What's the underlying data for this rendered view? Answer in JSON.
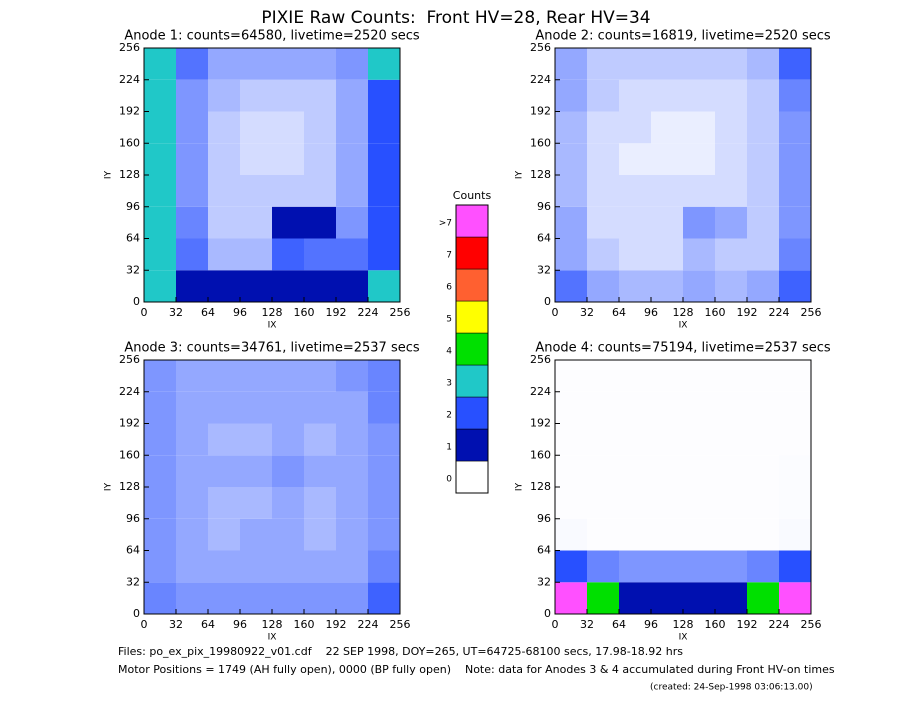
{
  "title": "PIXIE Raw Counts:  Front HV=28, Rear HV=34",
  "chart_data": [
    {
      "type": "heatmap",
      "title": "Anode 1: counts=64580, livetime=2520 secs",
      "xlabel": "IX",
      "ylabel": "IY",
      "xlim": [
        0,
        256
      ],
      "ylim": [
        0,
        256
      ],
      "xticks": [
        0,
        32,
        64,
        96,
        128,
        160,
        192,
        224,
        256
      ],
      "yticks": [
        0,
        32,
        64,
        96,
        128,
        160,
        192,
        224,
        256
      ],
      "z": [
        [
          3,
          1.2,
          1,
          1,
          1,
          1,
          1.2,
          3
        ],
        [
          3,
          0.8,
          0.4,
          0.4,
          0.9,
          0.8,
          0.8,
          2.5
        ],
        [
          3,
          0.7,
          0.3,
          0.3,
          1.8,
          1.5,
          0.6,
          2.5
        ],
        [
          3,
          0.6,
          0.3,
          0.3,
          0.3,
          0.3,
          0.5,
          2.5
        ],
        [
          3,
          0.6,
          0.3,
          0.2,
          0.2,
          0.3,
          0.5,
          2.5
        ],
        [
          3,
          0.6,
          0.3,
          0.2,
          0.2,
          0.3,
          0.5,
          2.5
        ],
        [
          3,
          0.6,
          0.4,
          0.3,
          0.3,
          0.3,
          0.5,
          2.5
        ],
        [
          3.5,
          0.8,
          0.5,
          0.5,
          0.5,
          0.5,
          0.6,
          3
        ]
      ]
    },
    {
      "type": "heatmap",
      "title": "Anode 2: counts=16819, livetime=2520 secs",
      "xlabel": "IX",
      "ylabel": "IY",
      "xlim": [
        0,
        256
      ],
      "ylim": [
        0,
        256
      ],
      "xticks": [
        0,
        32,
        64,
        96,
        128,
        160,
        192,
        224,
        256
      ],
      "yticks": [
        0,
        32,
        64,
        96,
        128,
        160,
        192,
        224,
        256
      ],
      "z": [
        [
          0.8,
          0.5,
          0.4,
          0.4,
          0.5,
          0.4,
          0.5,
          0.9
        ],
        [
          0.5,
          0.3,
          0.2,
          0.2,
          0.4,
          0.3,
          0.3,
          0.7
        ],
        [
          0.5,
          0.2,
          0.2,
          0.2,
          0.6,
          0.5,
          0.3,
          0.6
        ],
        [
          0.4,
          0.2,
          0.2,
          0.2,
          0.2,
          0.2,
          0.3,
          0.6
        ],
        [
          0.4,
          0.2,
          0.1,
          0.1,
          0.1,
          0.2,
          0.3,
          0.6
        ],
        [
          0.4,
          0.2,
          0.2,
          0.1,
          0.1,
          0.2,
          0.3,
          0.6
        ],
        [
          0.5,
          0.3,
          0.2,
          0.2,
          0.2,
          0.2,
          0.3,
          0.7
        ],
        [
          0.5,
          0.3,
          0.3,
          0.3,
          0.3,
          0.3,
          0.4,
          0.9
        ]
      ]
    },
    {
      "type": "heatmap",
      "title": "Anode 3: counts=34761, livetime=2537 secs",
      "xlabel": "IX",
      "ylabel": "IY",
      "xlim": [
        0,
        256
      ],
      "ylim": [
        0,
        256
      ],
      "xticks": [
        0,
        32,
        64,
        96,
        128,
        160,
        192,
        224,
        256
      ],
      "yticks": [
        0,
        32,
        64,
        96,
        128,
        160,
        192,
        224,
        256
      ],
      "z": [
        [
          0.7,
          0.6,
          0.6,
          0.6,
          0.6,
          0.6,
          0.6,
          0.9
        ],
        [
          0.6,
          0.5,
          0.5,
          0.5,
          0.5,
          0.5,
          0.5,
          0.7
        ],
        [
          0.6,
          0.5,
          0.4,
          0.5,
          0.5,
          0.4,
          0.5,
          0.6
        ],
        [
          0.6,
          0.5,
          0.4,
          0.4,
          0.5,
          0.4,
          0.5,
          0.6
        ],
        [
          0.6,
          0.5,
          0.5,
          0.5,
          0.6,
          0.5,
          0.5,
          0.6
        ],
        [
          0.6,
          0.5,
          0.4,
          0.4,
          0.5,
          0.4,
          0.5,
          0.6
        ],
        [
          0.6,
          0.5,
          0.5,
          0.5,
          0.5,
          0.5,
          0.5,
          0.7
        ],
        [
          0.6,
          0.5,
          0.5,
          0.5,
          0.5,
          0.5,
          0.6,
          0.7
        ]
      ]
    },
    {
      "type": "heatmap",
      "title": "Anode 4: counts=75194, livetime=2537 secs",
      "xlabel": "IX",
      "ylabel": "IY",
      "xlim": [
        0,
        256
      ],
      "ylim": [
        0,
        256
      ],
      "xticks": [
        0,
        32,
        64,
        96,
        128,
        160,
        192,
        224,
        256
      ],
      "yticks": [
        0,
        32,
        64,
        96,
        128,
        160,
        192,
        224,
        256
      ],
      "z": [
        [
          8,
          4,
          1.5,
          1.2,
          1.2,
          1.5,
          4,
          8
        ],
        [
          2,
          0.7,
          0.6,
          0.6,
          0.6,
          0.6,
          0.7,
          2
        ],
        [
          0.03,
          0.01,
          0.01,
          0.01,
          0.01,
          0.01,
          0.01,
          0.03
        ],
        [
          0.01,
          0.01,
          0.01,
          0.01,
          0.01,
          0.01,
          0.01,
          0.02
        ],
        [
          0.01,
          0.01,
          0.01,
          0.01,
          0.01,
          0.01,
          0.01,
          0.02
        ],
        [
          0.01,
          0.01,
          0.01,
          0.01,
          0.01,
          0.01,
          0.01,
          0.01
        ],
        [
          0.01,
          0.01,
          0.01,
          0.01,
          0.01,
          0.01,
          0.01,
          0.01
        ],
        [
          0.01,
          0.01,
          0.01,
          0.01,
          0.01,
          0.01,
          0.01,
          0.01
        ]
      ]
    }
  ],
  "colorbar": {
    "title": "Counts",
    "levels": [
      {
        "label": "0",
        "color": "#ffffff"
      },
      {
        "label": "1",
        "color": "#0010b0"
      },
      {
        "label": "2",
        "color": "#2850ff"
      },
      {
        "label": "3",
        "color": "#20c8c8"
      },
      {
        "label": "4",
        "color": "#00e000"
      },
      {
        "label": "5",
        "color": "#ffff00"
      },
      {
        "label": "6",
        "color": "#ff6030"
      },
      {
        "label": "7",
        "color": "#ff0000"
      },
      {
        "label": ">7",
        "color": "#ff50ff"
      }
    ]
  },
  "footer": {
    "files": "Files: po_ex_pix_19980922_v01.cdf    22 SEP 1998, DOY=265, UT=64725-68100 secs, 17.98-18.92 hrs",
    "motor": "Motor Positions = 1749 (AH fully open), 0000 (BP fully open)    Note: data for Anodes 3 & 4 accumulated during Front HV-on times",
    "created": "(created: 24-Sep-1998 03:06:13.00)"
  }
}
